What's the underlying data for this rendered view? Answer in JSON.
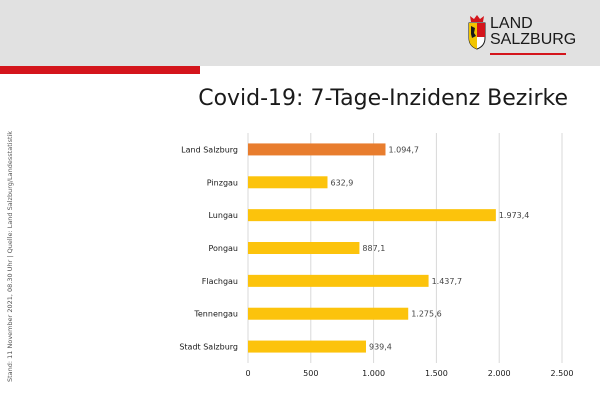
{
  "header": {
    "logo_line1": "LAND",
    "logo_line2": "SALZBURG",
    "accent_color": "#d4151c",
    "background_color": "#e1e1e1"
  },
  "title": "Covid-19: 7-Tage-Inzidenz Bezirke",
  "side_note": "Stand: 11 November 2021, 08.30 Uhr | Quelle: Land Salzburg/Landesstatistik",
  "chart_data": {
    "type": "bar",
    "orientation": "horizontal",
    "title": "Covid-19: 7-Tage-Inzidenz Bezirke",
    "xlabel": "",
    "ylabel": "",
    "xlim": [
      0,
      2500
    ],
    "xticks": [
      0,
      500,
      1000,
      1500,
      2000,
      2500
    ],
    "xtick_labels": [
      "0",
      "500",
      "1.000",
      "1.500",
      "2.000",
      "2.500"
    ],
    "grid": true,
    "categories": [
      "Land Salzburg",
      "Pinzgau",
      "Lungau",
      "Pongau",
      "Flachgau",
      "Tennengau",
      "Stadt Salzburg"
    ],
    "values": [
      1094.7,
      632.9,
      1973.4,
      887.1,
      1437.7,
      1275.6,
      939.4
    ],
    "value_labels": [
      "1.094,7",
      "632,9",
      "1.973,4",
      "887,1",
      "1.437,7",
      "1.275,6",
      "939,4"
    ],
    "colors": [
      "#e87d2e",
      "#fcc30c",
      "#fcc30c",
      "#fcc30c",
      "#fcc30c",
      "#fcc30c",
      "#fcc30c"
    ]
  }
}
